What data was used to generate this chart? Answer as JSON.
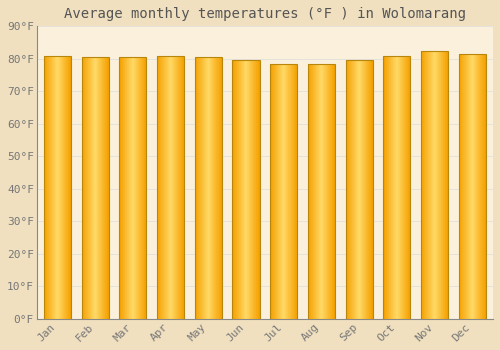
{
  "title": "Average monthly temperatures (°F ) in Wolomarang",
  "months": [
    "Jan",
    "Feb",
    "Mar",
    "Apr",
    "May",
    "Jun",
    "Jul",
    "Aug",
    "Sep",
    "Oct",
    "Nov",
    "Dec"
  ],
  "values": [
    81,
    80.5,
    80.5,
    81,
    80.5,
    79.5,
    78.5,
    78.5,
    79.5,
    81,
    82.5,
    81.5
  ],
  "ylim": [
    0,
    90
  ],
  "yticks": [
    0,
    10,
    20,
    30,
    40,
    50,
    60,
    70,
    80,
    90
  ],
  "ytick_labels": [
    "0°F",
    "10°F",
    "20°F",
    "30°F",
    "40°F",
    "50°F",
    "60°F",
    "70°F",
    "80°F",
    "90°F"
  ],
  "bar_color_center": "#FFD966",
  "bar_color_edge": "#F5A000",
  "bar_outline_color": "#B8860B",
  "background_color": "#F0E0C0",
  "plot_bg_color": "#FAF0DC",
  "grid_color": "#DDDDDD",
  "title_fontsize": 10,
  "tick_fontsize": 8,
  "font_color": "#777777",
  "title_color": "#555555"
}
